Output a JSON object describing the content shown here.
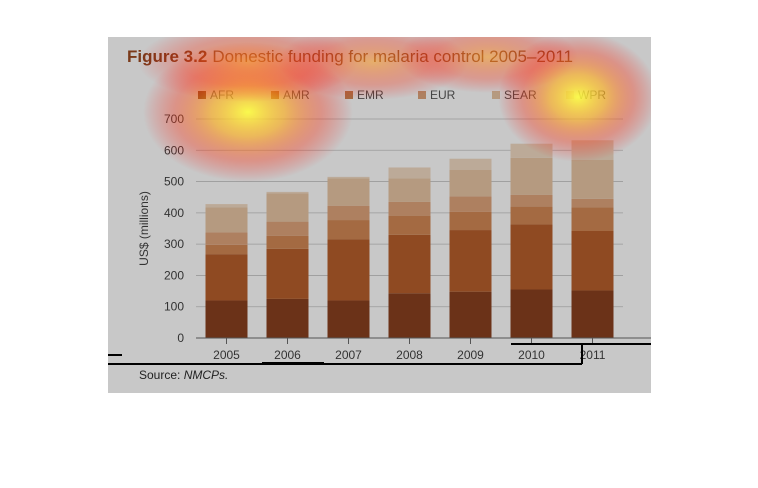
{
  "figure": {
    "number": "Figure 3.2",
    "title": "Domestic funding for malaria control 2005–2011",
    "source_label": "Source:",
    "source_text": "NMCPs."
  },
  "chart_data": {
    "type": "bar",
    "stacked": true,
    "title": "Figure 3.2 Domestic funding for malaria control 2005–2011",
    "xlabel": "",
    "ylabel": "US$ (millions)",
    "ylim": [
      0,
      700
    ],
    "yticks": [
      0,
      100,
      200,
      300,
      400,
      500,
      600,
      700
    ],
    "grid": true,
    "legend_position": "top",
    "categories": [
      "2005",
      "2006",
      "2007",
      "2008",
      "2009",
      "2010",
      "2011"
    ],
    "series": [
      {
        "name": "AFR",
        "color": "#6b3218",
        "values": [
          120,
          125,
          120,
          143,
          148,
          155,
          152
        ]
      },
      {
        "name": "AMR",
        "color": "#8f4a22",
        "values": [
          148,
          160,
          195,
          187,
          197,
          208,
          190
        ]
      },
      {
        "name": "EMR",
        "color": "#a46a42",
        "values": [
          30,
          42,
          62,
          60,
          58,
          57,
          75
        ]
      },
      {
        "name": "EUR",
        "color": "#ae8060",
        "values": [
          40,
          45,
          45,
          45,
          50,
          38,
          28
        ]
      },
      {
        "name": "SEAR",
        "color": "#b59a80",
        "values": [
          80,
          90,
          88,
          75,
          85,
          118,
          125
        ]
      },
      {
        "name": "WPR",
        "color": "#bcaa98",
        "values": [
          10,
          5,
          5,
          35,
          35,
          45,
          62
        ]
      }
    ]
  }
}
